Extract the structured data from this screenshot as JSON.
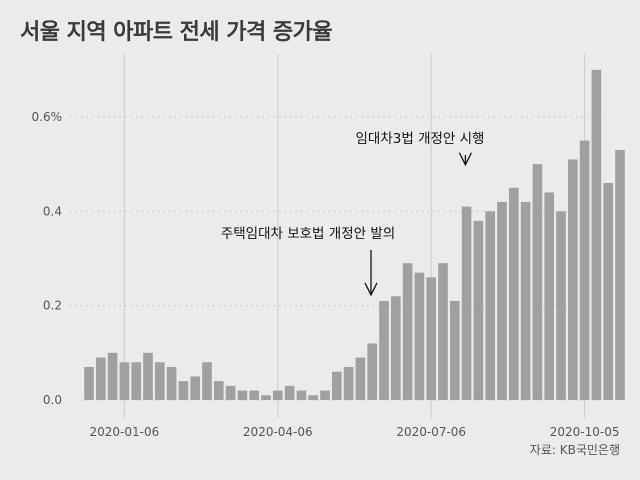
{
  "title": "서울 지역 아파트 전세 가격 증가율",
  "source": "자료: KB국민은행",
  "chart_data": {
    "type": "bar",
    "title": "서울 지역 아파트 전세 가격 증가율",
    "xlabel": "",
    "ylabel": "",
    "ylim": [
      0,
      0.7
    ],
    "grid": true,
    "bar_color": "#a0a0a0",
    "x_ticks": [
      {
        "label": "2020-01-06",
        "index": 3
      },
      {
        "label": "2020-04-06",
        "index": 16
      },
      {
        "label": "2020-07-06",
        "index": 29
      },
      {
        "label": "2020-10-05",
        "index": 42
      }
    ],
    "y_ticks": [
      {
        "label": "0.0",
        "value": 0
      },
      {
        "label": "0.2",
        "value": 0.2
      },
      {
        "label": "0.4",
        "value": 0.4
      },
      {
        "label": "0.6%",
        "value": 0.6
      }
    ],
    "values": [
      0.07,
      0.09,
      0.1,
      0.08,
      0.08,
      0.1,
      0.08,
      0.07,
      0.04,
      0.05,
      0.08,
      0.04,
      0.03,
      0.02,
      0.02,
      0.01,
      0.02,
      0.03,
      0.02,
      0.01,
      0.02,
      0.06,
      0.07,
      0.09,
      0.12,
      0.21,
      0.22,
      0.29,
      0.27,
      0.26,
      0.29,
      0.21,
      0.41,
      0.38,
      0.4,
      0.42,
      0.45,
      0.42,
      0.5,
      0.44,
      0.4,
      0.51,
      0.55,
      0.7,
      0.46,
      0.53
    ],
    "annotations": [
      {
        "text": "주택임대차 보호법 개정안 발의",
        "index": 25
      },
      {
        "text": "임대차3법 개정안 시행",
        "index": 33
      }
    ]
  }
}
